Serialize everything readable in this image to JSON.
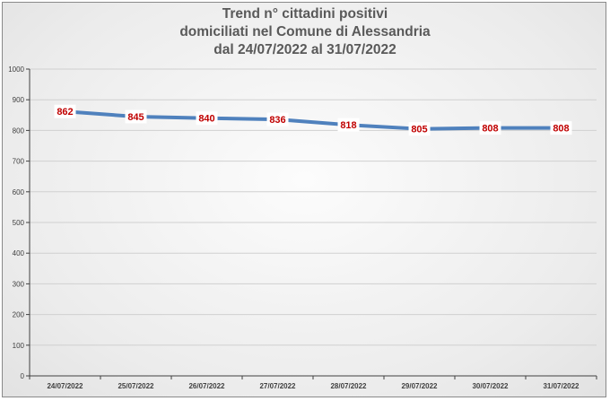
{
  "title_lines": [
    "Trend n° cittadini positivi",
    "domiciliati nel Comune di Alessandria",
    "dal 24/07/2022 al 31/07/2022"
  ],
  "colors": {
    "line": "#4f81bd",
    "data_label": "#c00000",
    "gridline": "#d0d0d0",
    "axis": "#404040"
  },
  "chart_data": {
    "type": "line",
    "title": "Trend n° cittadini positivi domiciliati nel Comune di Alessandria dal 24/07/2022 al 31/07/2022",
    "categories": [
      "24/07/2022",
      "25/07/2022",
      "26/07/2022",
      "27/07/2022",
      "28/07/2022",
      "29/07/2022",
      "30/07/2022",
      "31/07/2022"
    ],
    "series": [
      {
        "values": [
          862,
          845,
          840,
          836,
          818,
          805,
          808,
          808
        ]
      }
    ],
    "ylim": [
      0,
      1000
    ],
    "yticks": [
      0,
      100,
      200,
      300,
      400,
      500,
      600,
      700,
      800,
      900,
      1000
    ],
    "grid": true,
    "legend": "none",
    "data_labels": true
  }
}
